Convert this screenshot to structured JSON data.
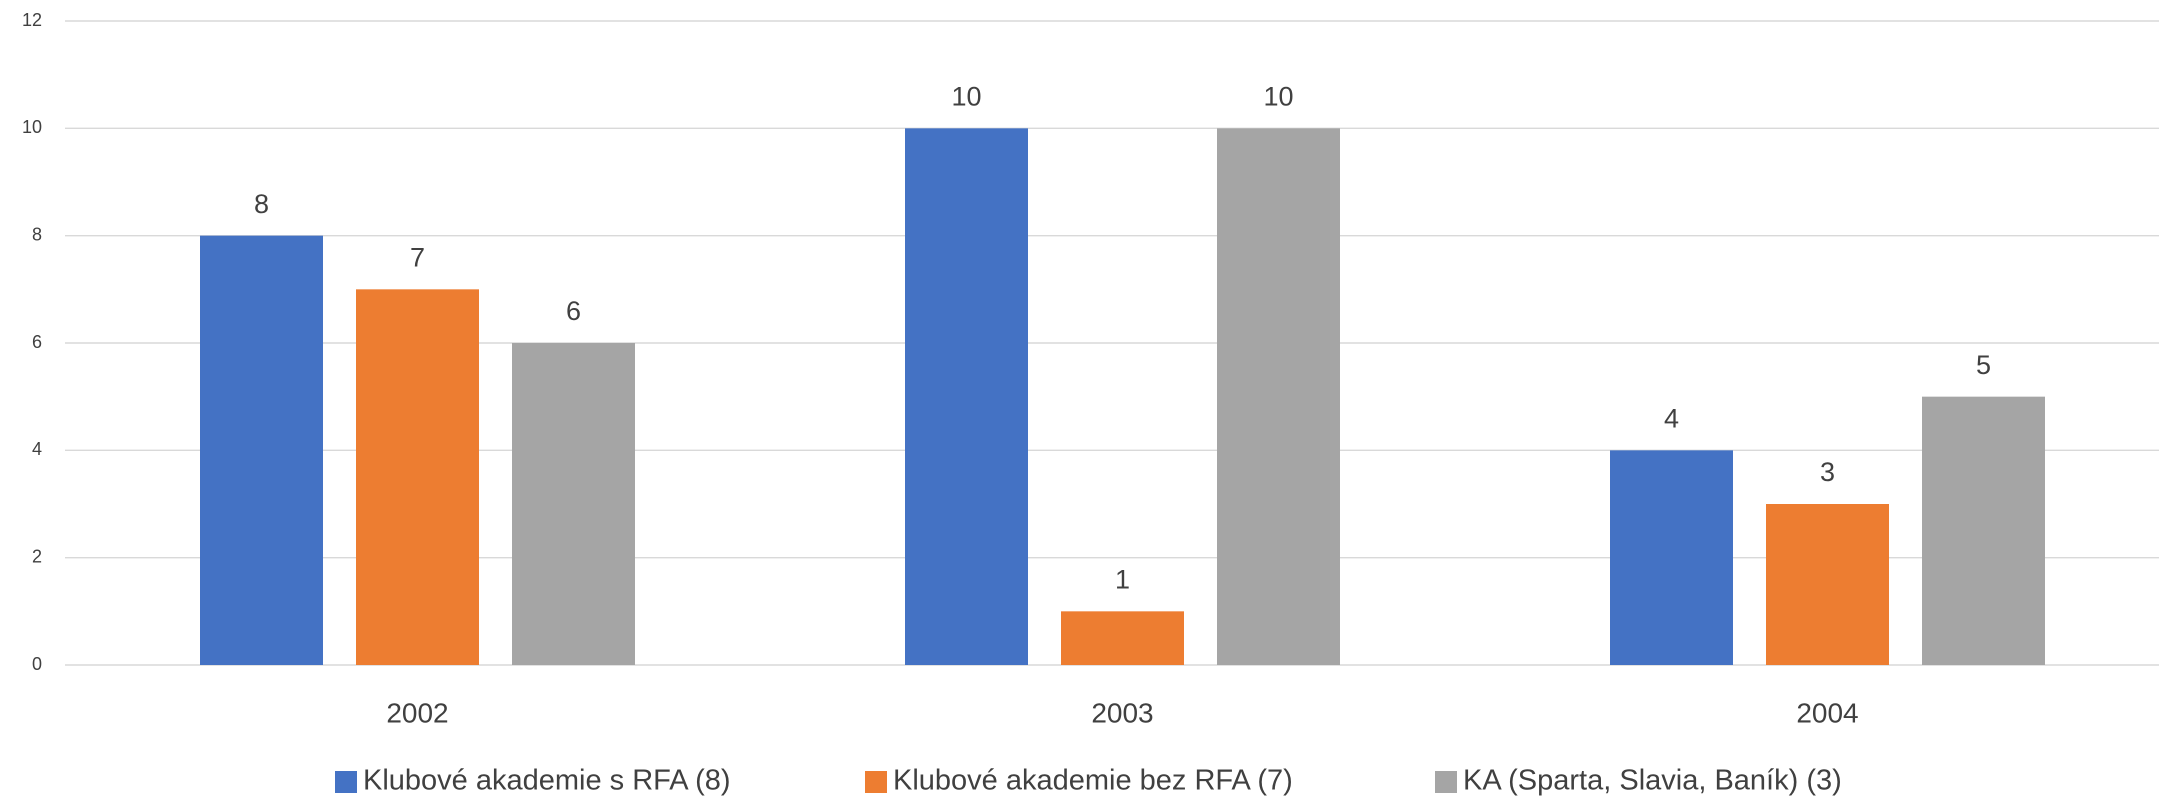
{
  "chart_data": {
    "type": "bar",
    "categories": [
      "2002",
      "2003",
      "2004"
    ],
    "series": [
      {
        "name": "Klubové akademie s RFA (8)",
        "color": "#4472c4",
        "values": [
          8,
          10,
          4
        ]
      },
      {
        "name": "Klubové akademie bez RFA (7)",
        "color": "#ed7d31",
        "values": [
          7,
          1,
          3
        ]
      },
      {
        "name": "KA (Sparta, Slavia, Baník) (3)",
        "color": "#a5a5a5",
        "values": [
          6,
          10,
          5
        ]
      }
    ],
    "ylim": [
      0,
      12
    ],
    "yticks": [
      0,
      2,
      4,
      6,
      8,
      10,
      12
    ],
    "grid": true,
    "legend": "bottom"
  }
}
